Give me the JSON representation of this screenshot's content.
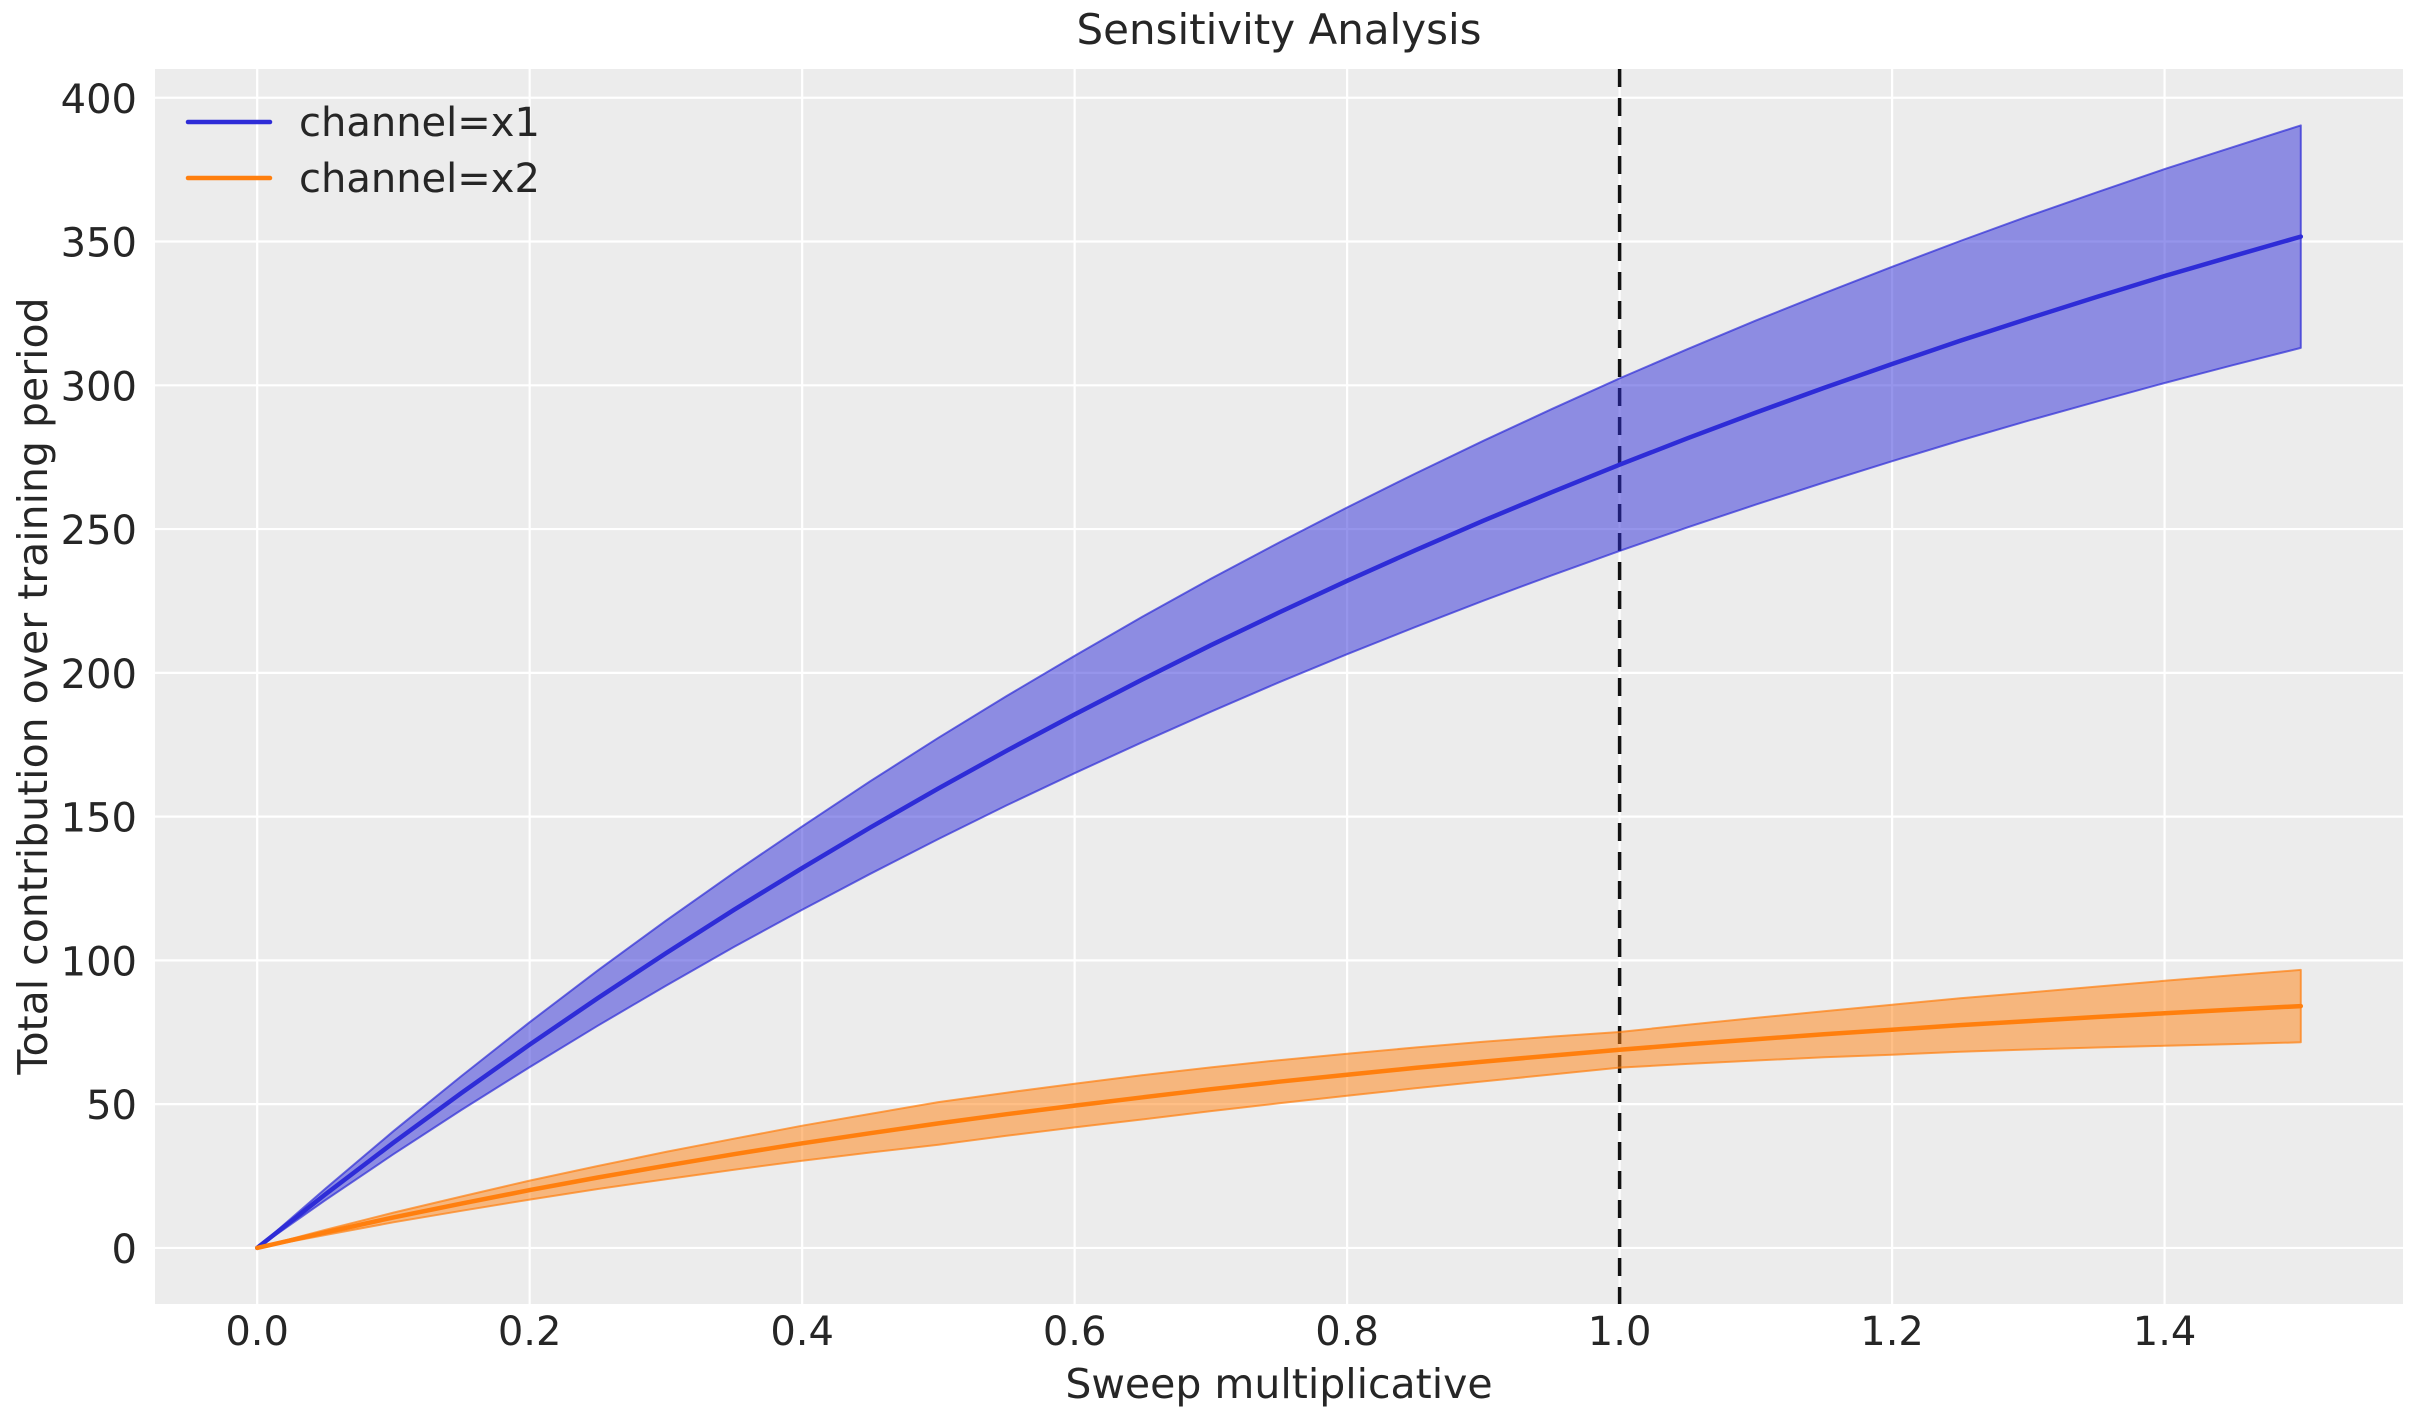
{
  "chart_data": {
    "type": "line",
    "title": "Sensitivity Analysis",
    "xlabel": "Sweep multiplicative",
    "ylabel": "Total contribution over training period",
    "xlim": [
      -0.075,
      1.575
    ],
    "ylim": [
      -19.5,
      410
    ],
    "grid": true,
    "grid_color": "#ffffff",
    "axes_background": "#ececec",
    "text_color": "#262626",
    "xticks": {
      "values": [
        0.0,
        0.2,
        0.4,
        0.6,
        0.8,
        1.0,
        1.2,
        1.4
      ],
      "labels": [
        "0.0",
        "0.2",
        "0.4",
        "0.6",
        "0.8",
        "1.0",
        "1.2",
        "1.4"
      ]
    },
    "yticks": {
      "values": [
        0,
        50,
        100,
        150,
        200,
        250,
        300,
        350,
        400
      ],
      "labels": [
        "0",
        "50",
        "100",
        "150",
        "200",
        "250",
        "300",
        "350",
        "400"
      ]
    },
    "reference_line": {
      "x": 1.0,
      "color": "#111111",
      "style": "dashed"
    },
    "legend": {
      "position": "upper-left",
      "frame": false
    },
    "x": [
      0.0,
      0.05,
      0.1,
      0.15,
      0.2,
      0.25,
      0.3,
      0.35,
      0.4,
      0.45,
      0.5,
      0.55,
      0.6,
      0.65,
      0.7,
      0.75,
      0.8,
      0.85,
      0.9,
      0.95,
      1.0,
      1.05,
      1.1,
      1.15,
      1.2,
      1.25,
      1.3,
      1.35,
      1.4,
      1.45,
      1.5
    ],
    "series": [
      {
        "name": "channel=x1",
        "color": "#2e2cd7",
        "y": [
          0,
          18.6,
          36.6,
          53.9,
          70.7,
          86.9,
          102.5,
          117.6,
          132.1,
          146.2,
          159.8,
          172.9,
          185.5,
          197.8,
          209.6,
          221.0,
          232.0,
          242.6,
          252.9,
          262.8,
          272.4,
          281.6,
          290.5,
          299.1,
          307.4,
          315.5,
          323.2,
          330.7,
          338.0,
          344.9,
          351.7
        ],
        "lo": [
          0,
          16.6,
          32.6,
          48.0,
          62.9,
          77.3,
          91.2,
          104.7,
          117.6,
          130.1,
          142.2,
          153.9,
          165.1,
          176.0,
          186.5,
          196.7,
          206.5,
          215.9,
          225.1,
          233.9,
          242.4,
          250.6,
          258.5,
          266.2,
          273.6,
          280.8,
          287.7,
          294.3,
          300.8,
          307.0,
          313.0
        ],
        "hi": [
          0,
          20.6,
          40.6,
          59.8,
          78.5,
          96.5,
          113.8,
          130.5,
          146.6,
          162.3,
          177.4,
          191.9,
          205.9,
          219.6,
          232.7,
          245.3,
          257.5,
          269.3,
          280.7,
          291.7,
          302.4,
          312.6,
          322.5,
          332.0,
          341.2,
          350.2,
          358.8,
          367.1,
          375.2,
          382.8,
          390.4
        ]
      },
      {
        "name": "channel=x2",
        "color": "#ff7f0e",
        "y": [
          0,
          5.4,
          10.6,
          15.4,
          20.1,
          24.5,
          28.6,
          32.6,
          36.4,
          39.9,
          43.3,
          46.5,
          49.5,
          52.4,
          55.2,
          57.8,
          60.2,
          62.6,
          64.8,
          66.9,
          68.9,
          70.8,
          72.6,
          74.3,
          75.9,
          77.5,
          78.9,
          80.3,
          81.6,
          82.9,
          84.1
        ],
        "lo": [
          0,
          4.5,
          8.9,
          12.9,
          16.8,
          20.5,
          23.9,
          27.2,
          30.3,
          33.2,
          35.9,
          39.0,
          41.9,
          44.7,
          47.6,
          50.3,
          52.9,
          55.5,
          57.9,
          60.3,
          62.7,
          64.0,
          65.2,
          66.3,
          67.2,
          68.2,
          69.0,
          69.7,
          70.3,
          70.9,
          71.5
        ],
        "hi": [
          0,
          6.3,
          12.3,
          17.9,
          23.4,
          28.5,
          33.4,
          38.0,
          42.5,
          46.6,
          50.7,
          54.0,
          57.1,
          60.1,
          62.8,
          65.3,
          67.5,
          69.7,
          71.7,
          73.5,
          75.1,
          77.6,
          80.0,
          82.3,
          84.6,
          86.8,
          88.8,
          90.9,
          92.9,
          94.8,
          96.7
        ]
      }
    ]
  }
}
